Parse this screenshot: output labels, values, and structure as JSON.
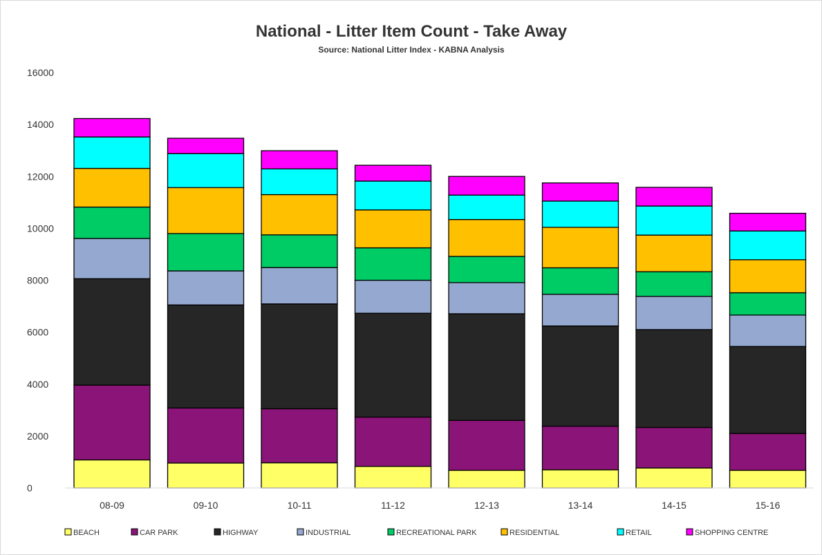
{
  "chart_data": {
    "type": "bar",
    "stacked": true,
    "title": "National - Litter Item Count - Take Away",
    "subtitle": "Source: National Litter Index - KABNA Analysis",
    "xlabel": "",
    "ylabel": "",
    "ylim": [
      0,
      16000
    ],
    "yticks": [
      0,
      2000,
      4000,
      6000,
      8000,
      10000,
      12000,
      14000,
      16000
    ],
    "grid": false,
    "legend_position": "bottom",
    "categories": [
      "08-09",
      "09-10",
      "10-11",
      "11-12",
      "12-13",
      "13-14",
      "14-15",
      "15-16"
    ],
    "series": [
      {
        "name": "BEACH",
        "color": "#ffff66",
        "values": [
          1080,
          960,
          970,
          830,
          680,
          700,
          770,
          680
        ]
      },
      {
        "name": "CAR PARK",
        "color": "#8b1478",
        "values": [
          2880,
          2120,
          2080,
          1900,
          1920,
          1680,
          1560,
          1420
        ]
      },
      {
        "name": "HIGHWAY",
        "color": "#262626",
        "values": [
          4100,
          3970,
          4040,
          4000,
          4110,
          3860,
          3770,
          3350
        ]
      },
      {
        "name": "INDUSTRIAL",
        "color": "#95a8d0",
        "values": [
          1550,
          1310,
          1400,
          1270,
          1200,
          1220,
          1280,
          1210
        ]
      },
      {
        "name": "RECREATIONAL PARK",
        "color": "#00cc66",
        "values": [
          1210,
          1440,
          1260,
          1250,
          1010,
          1020,
          950,
          860
        ]
      },
      {
        "name": "RESIDENTIAL",
        "color": "#ffc000",
        "values": [
          1490,
          1770,
          1550,
          1460,
          1420,
          1560,
          1410,
          1270
        ]
      },
      {
        "name": "RETAIL",
        "color": "#00ffff",
        "values": [
          1210,
          1310,
          990,
          1110,
          940,
          1010,
          1120,
          1110
        ]
      },
      {
        "name": "SHOPPING CENTRE",
        "color": "#ff00ff",
        "values": [
          710,
          590,
          700,
          610,
          720,
          700,
          720,
          680
        ]
      }
    ]
  }
}
